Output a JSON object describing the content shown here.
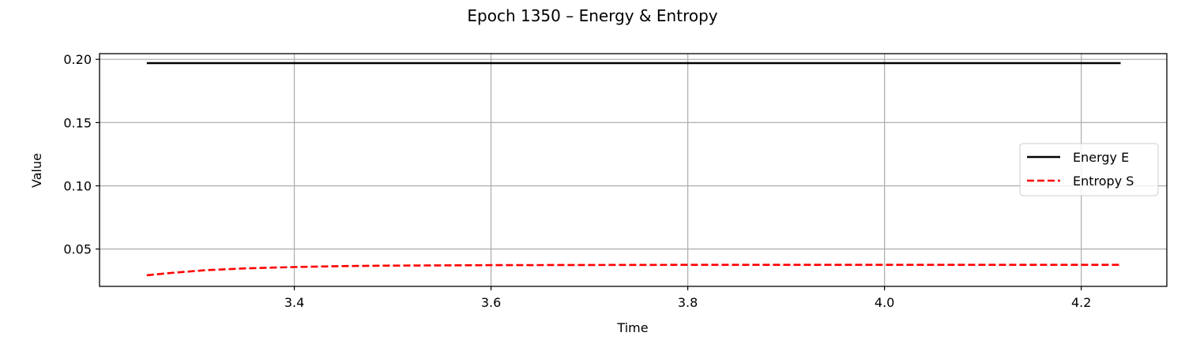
{
  "chart_data": {
    "type": "line",
    "title": "Epoch 1350 – Energy & Entropy",
    "xlabel": "Time",
    "ylabel": "Value",
    "xlim": [
      3.202,
      4.287
    ],
    "ylim": [
      0.0205,
      0.2045
    ],
    "xticks": [
      3.4,
      3.6,
      3.8,
      4.0,
      4.2
    ],
    "xtick_labels": [
      "3.4",
      "3.6",
      "3.8",
      "4.0",
      "4.2"
    ],
    "yticks": [
      0.05,
      0.1,
      0.15,
      0.2
    ],
    "ytick_labels": [
      "0.05",
      "0.10",
      "0.15",
      "0.20"
    ],
    "grid": true,
    "legend_position": "right",
    "series": [
      {
        "name": "Energy E",
        "color": "#000000",
        "style": "solid",
        "x": [
          3.25,
          3.35,
          3.45,
          3.55,
          3.65,
          3.75,
          3.85,
          3.95,
          4.05,
          4.15,
          4.24
        ],
        "y": [
          0.197,
          0.197,
          0.197,
          0.197,
          0.197,
          0.197,
          0.197,
          0.197,
          0.197,
          0.197,
          0.197
        ]
      },
      {
        "name": "Entropy S",
        "color": "#ff0000",
        "style": "dashed",
        "x": [
          3.25,
          3.28,
          3.31,
          3.35,
          3.4,
          3.45,
          3.5,
          3.55,
          3.6,
          3.7,
          3.8,
          3.9,
          4.0,
          4.1,
          4.2,
          4.24
        ],
        "y": [
          0.0293,
          0.0315,
          0.0333,
          0.0347,
          0.0358,
          0.0365,
          0.0369,
          0.0371,
          0.0373,
          0.0374,
          0.0375,
          0.0375,
          0.0375,
          0.0375,
          0.0375,
          0.0375
        ]
      }
    ]
  }
}
